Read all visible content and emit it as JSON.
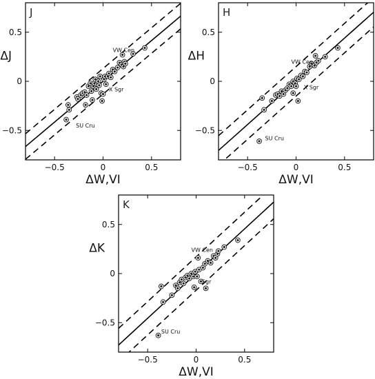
{
  "chart_data": [
    {
      "type": "scatter",
      "panel_label": "J",
      "xlabel": "ΔW,VI",
      "ylabel": "ΔJ",
      "xlim": [
        -0.8,
        0.8
      ],
      "ylim": [
        -0.8,
        0.8
      ],
      "xticks": [
        -0.5,
        0,
        0.5
      ],
      "yticks": [
        -0.5,
        0,
        0.5
      ],
      "xticklabels": [
        "−0.5",
        "0",
        "0.5"
      ],
      "yticklabels": [
        "−0.5",
        "0",
        "0.5"
      ],
      "lines": {
        "slope": 0.83,
        "intercept": 0.0,
        "offset": 0.13
      },
      "points": [
        [
          -0.38,
          -0.39
        ],
        [
          -0.36,
          -0.24
        ],
        [
          -0.35,
          -0.29
        ],
        [
          -0.27,
          -0.16
        ],
        [
          -0.26,
          -0.18
        ],
        [
          -0.23,
          -0.14
        ],
        [
          -0.21,
          -0.12
        ],
        [
          -0.19,
          -0.11
        ],
        [
          -0.18,
          -0.24
        ],
        [
          -0.17,
          -0.14
        ],
        [
          -0.15,
          -0.05
        ],
        [
          -0.13,
          -0.02
        ],
        [
          -0.12,
          -0.1
        ],
        [
          -0.11,
          -0.19
        ],
        [
          -0.1,
          -0.05
        ],
        [
          -0.09,
          -0.02
        ],
        [
          -0.08,
          0.02
        ],
        [
          -0.07,
          -0.08
        ],
        [
          -0.06,
          -0.03
        ],
        [
          -0.05,
          0.0
        ],
        [
          -0.04,
          -0.04
        ],
        [
          -0.03,
          0.05
        ],
        [
          -0.02,
          -0.12
        ],
        [
          -0.01,
          -0.2
        ],
        [
          0.0,
          -0.13
        ],
        [
          0.01,
          0.02
        ],
        [
          0.02,
          0.05
        ],
        [
          0.03,
          -0.03
        ],
        [
          0.05,
          0.05
        ],
        [
          0.06,
          0.08
        ],
        [
          0.08,
          0.04
        ],
        [
          0.1,
          0.12
        ],
        [
          0.12,
          0.1
        ],
        [
          0.15,
          0.14
        ],
        [
          0.17,
          0.19
        ],
        [
          0.19,
          0.17
        ],
        [
          0.21,
          0.15
        ],
        [
          0.22,
          0.2
        ],
        [
          0.23,
          0.18
        ],
        [
          0.2,
          0.27
        ],
        [
          0.43,
          0.34
        ],
        [
          0.31,
          0.28
        ]
      ],
      "annotations": [
        {
          "text": "VW Cen",
          "x": 0.1,
          "y": 0.3
        },
        {
          "text": "X Sgr",
          "x": 0.06,
          "y": -0.1
        },
        {
          "text": "SU Cru",
          "x": -0.28,
          "y": -0.47
        }
      ]
    },
    {
      "type": "scatter",
      "panel_label": "H",
      "xlabel": "ΔW,VI",
      "ylabel": "ΔH",
      "xlim": [
        -0.8,
        0.8
      ],
      "ylim": [
        -0.8,
        0.8
      ],
      "xticks": [
        -0.5,
        0,
        0.5
      ],
      "yticks": [
        -0.5,
        0,
        0.5
      ],
      "xticklabels": [
        "−0.5",
        "0",
        "0.5"
      ],
      "yticklabels": [
        "−0.5",
        "0",
        "0.5"
      ],
      "lines": {
        "slope": 0.88,
        "intercept": 0.0,
        "offset": 0.15
      },
      "points": [
        [
          -0.38,
          -0.61
        ],
        [
          -0.35,
          -0.17
        ],
        [
          -0.33,
          -0.29
        ],
        [
          -0.25,
          -0.2
        ],
        [
          -0.21,
          -0.14
        ],
        [
          -0.19,
          -0.13
        ],
        [
          -0.17,
          -0.15
        ],
        [
          -0.15,
          -0.1
        ],
        [
          -0.13,
          -0.13
        ],
        [
          -0.11,
          -0.09
        ],
        [
          -0.09,
          -0.07
        ],
        [
          -0.07,
          -0.03
        ],
        [
          -0.05,
          -0.05
        ],
        [
          -0.03,
          0.0
        ],
        [
          -0.01,
          -0.02
        ],
        [
          0.01,
          0.03
        ],
        [
          0.02,
          -0.2
        ],
        [
          0.03,
          0.02
        ],
        [
          0.05,
          0.06
        ],
        [
          0.07,
          0.05
        ],
        [
          0.09,
          0.1
        ],
        [
          0.11,
          0.09
        ],
        [
          0.14,
          0.15
        ],
        [
          0.16,
          0.18
        ],
        [
          0.19,
          0.16
        ],
        [
          0.21,
          0.19
        ],
        [
          0.23,
          0.21
        ],
        [
          0.2,
          0.26
        ],
        [
          0.43,
          0.34
        ],
        [
          0.3,
          0.25
        ],
        [
          0.0,
          -0.05
        ],
        [
          -0.03,
          -0.12
        ]
      ],
      "annotations": [
        {
          "text": "VW Cen",
          "x": -0.05,
          "y": 0.18
        },
        {
          "text": "X Sgr",
          "x": 0.08,
          "y": -0.08
        },
        {
          "text": "SU Cru",
          "x": -0.32,
          "y": -0.6
        }
      ]
    },
    {
      "type": "scatter",
      "panel_label": "K",
      "xlabel": "ΔW,VI",
      "ylabel": "ΔK",
      "xlim": [
        -0.8,
        0.8
      ],
      "ylim": [
        -0.8,
        0.8
      ],
      "xticks": [
        -0.5,
        0,
        0.5
      ],
      "yticks": [
        -0.5,
        0,
        0.5
      ],
      "xticklabels": [
        "−0.5",
        "0",
        "0.5"
      ],
      "yticklabels": [
        "−0.5",
        "0",
        "0.5"
      ],
      "lines": {
        "slope": 0.91,
        "intercept": 0.0,
        "offset": 0.17
      },
      "points": [
        [
          -0.39,
          -0.63
        ],
        [
          -0.36,
          -0.13
        ],
        [
          -0.34,
          -0.29
        ],
        [
          -0.25,
          -0.22
        ],
        [
          -0.21,
          -0.12
        ],
        [
          -0.19,
          -0.15
        ],
        [
          -0.17,
          -0.09
        ],
        [
          -0.15,
          -0.06
        ],
        [
          -0.13,
          -0.1
        ],
        [
          -0.11,
          -0.04
        ],
        [
          -0.09,
          -0.02
        ],
        [
          -0.07,
          -0.05
        ],
        [
          -0.05,
          0.0
        ],
        [
          -0.03,
          -0.03
        ],
        [
          -0.01,
          0.02
        ],
        [
          0.01,
          -0.03
        ],
        [
          0.03,
          0.04
        ],
        [
          0.05,
          -0.08
        ],
        [
          0.07,
          0.06
        ],
        [
          0.09,
          0.1
        ],
        [
          0.12,
          0.13
        ],
        [
          0.15,
          0.11
        ],
        [
          0.18,
          0.18
        ],
        [
          0.2,
          0.16
        ],
        [
          0.22,
          0.2
        ],
        [
          0.23,
          0.23
        ],
        [
          0.29,
          0.27
        ],
        [
          0.43,
          0.34
        ],
        [
          0.02,
          0.16
        ],
        [
          -0.02,
          -0.14
        ],
        [
          0.1,
          -0.15
        ]
      ],
      "annotations": [
        {
          "text": "VW Cen",
          "x": -0.05,
          "y": 0.22
        },
        {
          "text": "Sgr",
          "x": 0.06,
          "y": -0.1
        },
        {
          "text": "SU Cru",
          "x": -0.36,
          "y": -0.61
        }
      ]
    }
  ]
}
